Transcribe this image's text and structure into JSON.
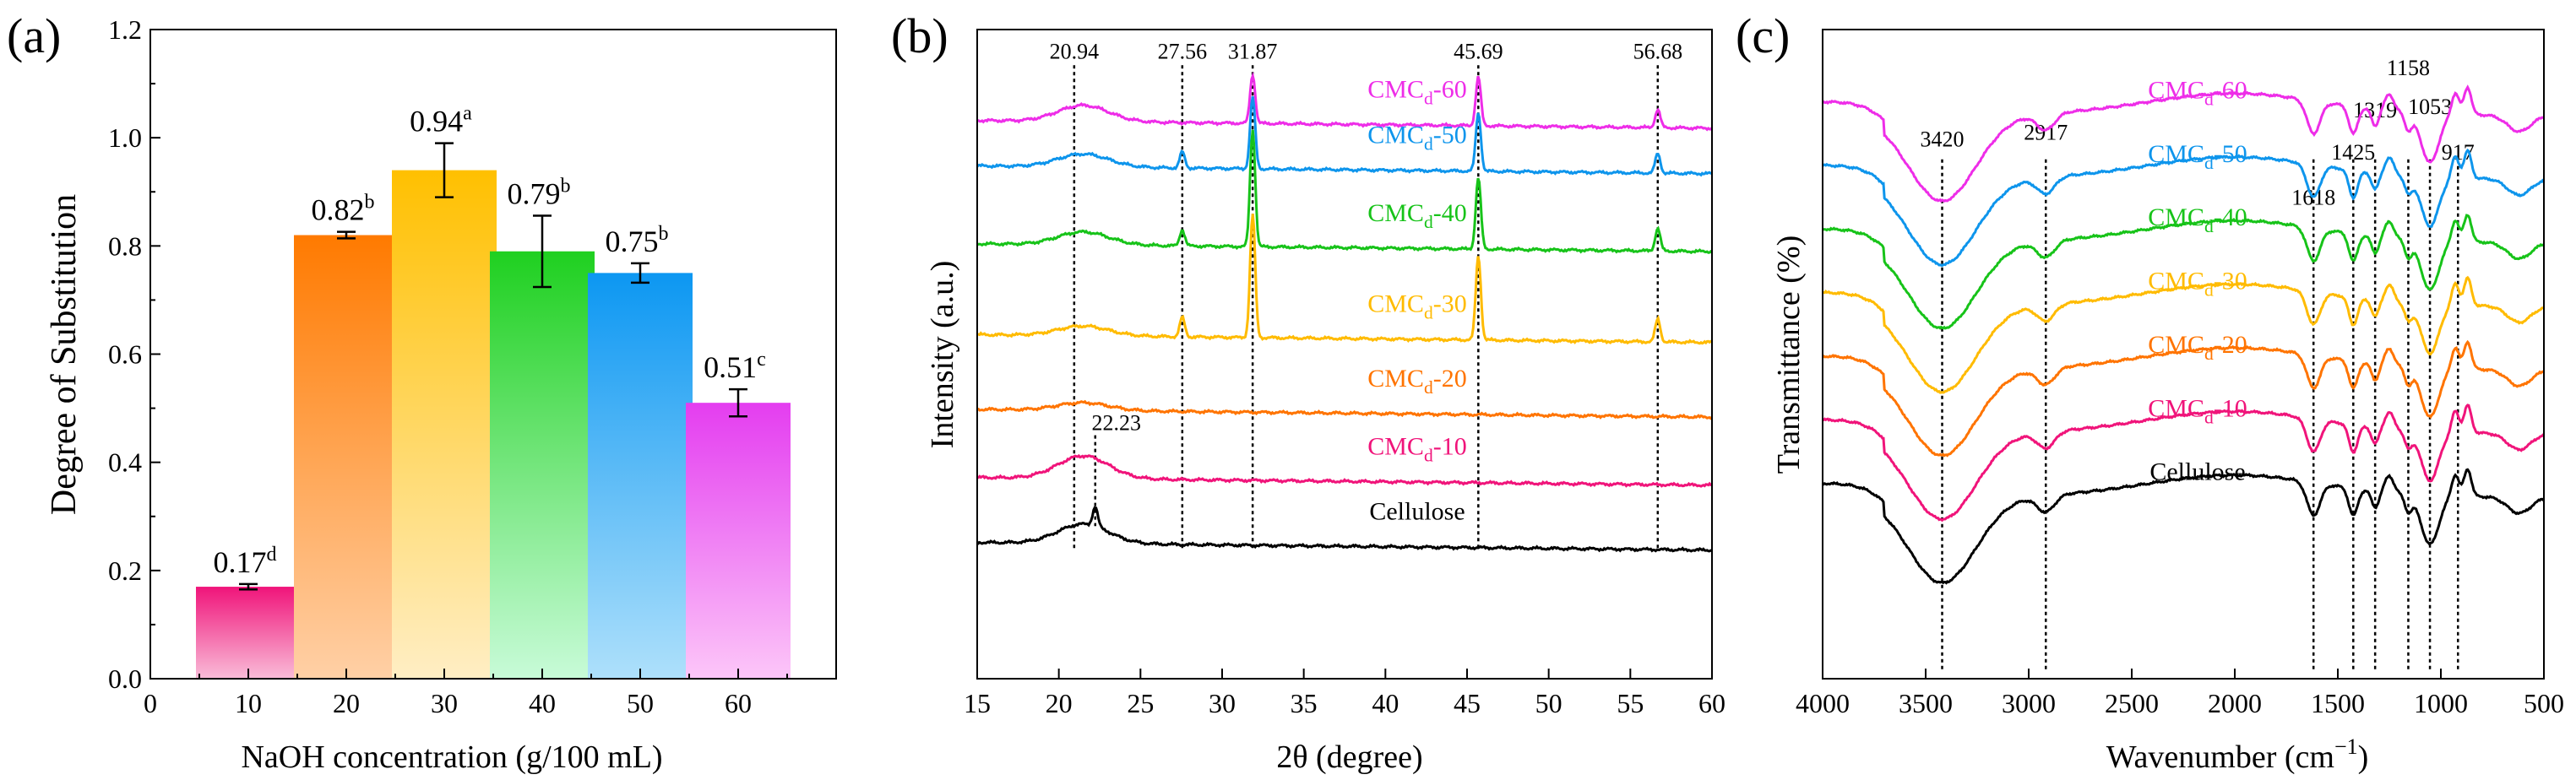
{
  "chart_data": [
    {
      "type": "bar",
      "panel": "(a)",
      "xlabel": "NaOH concentration (g/100 mL)",
      "ylabel": "Degree of Substitution",
      "xlim": [
        0,
        70
      ],
      "ylim": [
        0,
        1.2
      ],
      "xticks": [
        0,
        10,
        20,
        30,
        40,
        50,
        60
      ],
      "yticks": [
        "0.0",
        "0.2",
        "0.4",
        "0.6",
        "0.8",
        "1.0",
        "1.2"
      ],
      "bars": [
        {
          "x": 10,
          "value": 0.17,
          "error": 0.005,
          "label": "0.17",
          "sup": "d",
          "color_top": "#f0147a",
          "color_bottom": "#f9bcd8"
        },
        {
          "x": 20,
          "value": 0.82,
          "error": 0.006,
          "label": "0.82",
          "sup": "b",
          "color_top": "#ff7a00",
          "color_bottom": "#ffd0a6"
        },
        {
          "x": 30,
          "value": 0.94,
          "error": 0.05,
          "label": "0.94",
          "sup": "a",
          "color_top": "#ffc000",
          "color_bottom": "#ffeec4"
        },
        {
          "x": 40,
          "value": 0.79,
          "error": 0.066,
          "label": "0.79",
          "sup": "b",
          "color_top": "#1fd020",
          "color_bottom": "#c8fbd8"
        },
        {
          "x": 50,
          "value": 0.75,
          "error": 0.018,
          "label": "0.75",
          "sup": "b",
          "color_top": "#0c97f2",
          "color_bottom": "#aee0fb"
        },
        {
          "x": 60,
          "value": 0.51,
          "error": 0.025,
          "label": "0.51",
          "sup": "c",
          "color_top": "#e43df0",
          "color_bottom": "#fcc6f8"
        }
      ]
    },
    {
      "type": "line",
      "panel": "(b)",
      "xlabel": "2θ (degree)",
      "ylabel": "Intensity (a.u.)",
      "xlim": [
        15,
        60
      ],
      "xticks": [
        15,
        20,
        25,
        30,
        35,
        40,
        45,
        50,
        55,
        60
      ],
      "ref_lines": [
        20.94,
        27.56,
        31.87,
        45.69,
        56.68,
        22.23
      ],
      "peak_labels": [
        {
          "x": 20.94,
          "label": "20.94"
        },
        {
          "x": 27.56,
          "label": "27.56"
        },
        {
          "x": 31.87,
          "label": "31.87"
        },
        {
          "x": 45.69,
          "label": "45.69"
        },
        {
          "x": 56.68,
          "label": "56.68"
        },
        {
          "x": 22.23,
          "label": "22.23"
        }
      ],
      "series": [
        {
          "name": "CMC",
          "sub": "d",
          "suffix": "-60",
          "color": "#ee2de8",
          "baseline": 0.14,
          "broad": 0.025,
          "peaks": [
            [
              27.56,
              0.0
            ],
            [
              31.87,
              0.075
            ],
            [
              45.69,
              0.075
            ],
            [
              56.68,
              0.028
            ]
          ]
        },
        {
          "name": "CMC",
          "sub": "d",
          "suffix": "-50",
          "color": "#0e95ec",
          "baseline": 0.21,
          "broad": 0.02,
          "peaks": [
            [
              27.56,
              0.025
            ],
            [
              31.87,
              0.11
            ],
            [
              45.69,
              0.09
            ],
            [
              56.68,
              0.03
            ]
          ]
        },
        {
          "name": "CMC",
          "sub": "d",
          "suffix": "-40",
          "color": "#17c319",
          "baseline": 0.33,
          "broad": 0.02,
          "peaks": [
            [
              27.56,
              0.025
            ],
            [
              31.87,
              0.18
            ],
            [
              45.69,
              0.11
            ],
            [
              56.68,
              0.035
            ]
          ]
        },
        {
          "name": "CMC",
          "sub": "d",
          "suffix": "-30",
          "color": "#ffbb00",
          "baseline": 0.47,
          "broad": 0.015,
          "peaks": [
            [
              27.56,
              0.03
            ],
            [
              31.87,
              0.19
            ],
            [
              45.69,
              0.13
            ],
            [
              56.68,
              0.035
            ]
          ]
        },
        {
          "name": "CMC",
          "sub": "d",
          "suffix": "-20",
          "color": "#ff7400",
          "baseline": 0.585,
          "broad": 0.012,
          "peaks": []
        },
        {
          "name": "CMC",
          "sub": "d",
          "suffix": "-10",
          "color": "#f0147a",
          "baseline": 0.69,
          "broad": 0.035,
          "peaks": []
        },
        {
          "name": "Cellulose",
          "sub": "",
          "suffix": "",
          "color": "#000000",
          "baseline": 0.79,
          "broad": 0.03,
          "peaks": [
            [
              22.23,
              0.03
            ]
          ]
        }
      ]
    },
    {
      "type": "line",
      "panel": "(c)",
      "xlabel": "Wavenumber (cm",
      "xlabel_sup": "−1",
      "xlabel_end": ")",
      "ylabel": "Transmittance (%)",
      "xlim": [
        4000,
        500
      ],
      "xticks": [
        4000,
        3500,
        3000,
        2500,
        2000,
        1500,
        1000,
        500
      ],
      "ref_lines": [
        3420,
        2917,
        1618,
        1425,
        1319,
        1158,
        1053,
        917
      ],
      "band_labels": [
        {
          "x": 3420,
          "label": "3420"
        },
        {
          "x": 2917,
          "label": "2917"
        },
        {
          "x": 1618,
          "label": "1618"
        },
        {
          "x": 1425,
          "label": "1425"
        },
        {
          "x": 1319,
          "label": "1319"
        },
        {
          "x": 1158,
          "label": "1158"
        },
        {
          "x": 1053,
          "label": "1053"
        },
        {
          "x": 917,
          "label": "917"
        }
      ],
      "series": [
        {
          "name": "CMC",
          "sub": "d",
          "suffix": "-60",
          "color": "#ee2de8",
          "offset": 0.0
        },
        {
          "name": "CMC",
          "sub": "d",
          "suffix": "-50",
          "color": "#0e95ec",
          "offset": 0.1
        },
        {
          "name": "CMC",
          "sub": "d",
          "suffix": "-40",
          "color": "#17c319",
          "offset": 0.2
        },
        {
          "name": "CMC",
          "sub": "d",
          "suffix": "-30",
          "color": "#ffbb00",
          "offset": 0.3
        },
        {
          "name": "CMC",
          "sub": "d",
          "suffix": "-20",
          "color": "#ff7400",
          "offset": 0.4
        },
        {
          "name": "CMC",
          "sub": "d",
          "suffix": "-10",
          "color": "#f0147a",
          "offset": 0.5
        },
        {
          "name": "Cellulose",
          "sub": "",
          "suffix": "",
          "color": "#000000",
          "offset": 0.6
        }
      ]
    }
  ]
}
